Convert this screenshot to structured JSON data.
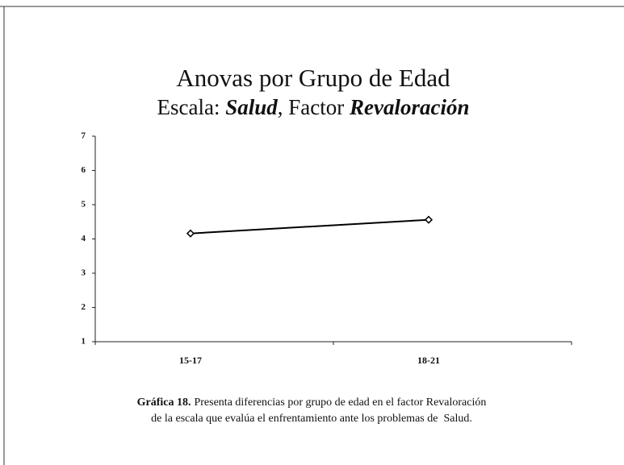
{
  "chart_data": {
    "type": "line",
    "title": "Anovas por Grupo de Edad",
    "subtitle": [
      "Escala: ",
      "Salud",
      ", Factor ",
      "Revaloración"
    ],
    "categories": [
      "15-17",
      "18-21"
    ],
    "series": [
      {
        "color": "#000000",
        "values": [
          4.16,
          4.56
        ]
      }
    ],
    "ylim": [
      1,
      7
    ],
    "yticks": [
      1,
      2,
      3,
      4,
      5,
      6,
      7
    ],
    "grid": false,
    "caption": {
      "label": "Gráfica 18.",
      "lines": [
        "Presenta diferencias por grupo de edad en el factor Revaloración",
        "de la escala que evalúa el enfrentamiento ante los problemas de  Salud."
      ]
    }
  }
}
